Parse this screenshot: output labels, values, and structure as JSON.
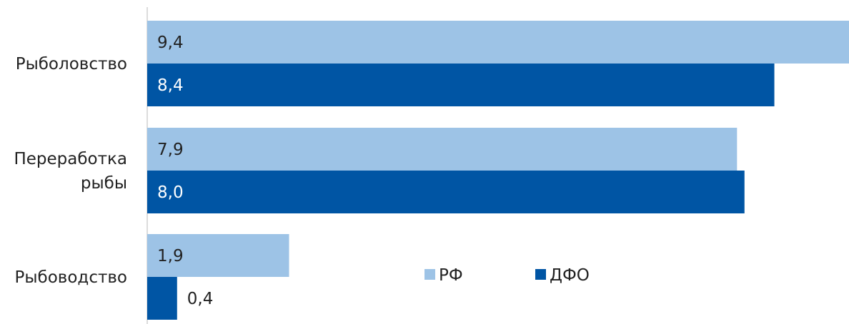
{
  "chart_data": {
    "type": "bar",
    "orientation": "horizontal",
    "categories": [
      [
        "Рыболовство"
      ],
      [
        "Переработка",
        "рыбы"
      ],
      [
        "Рыбоводство"
      ]
    ],
    "series": [
      {
        "name": "РФ",
        "values": [
          9.4,
          7.9,
          1.9
        ],
        "labels": [
          "9,4",
          "7,9",
          "1,9"
        ],
        "color": "#9dc3e6"
      },
      {
        "name": "ДФО",
        "values": [
          8.4,
          8.0,
          0.4
        ],
        "labels": [
          "8,4",
          "8,0",
          "0,4"
        ],
        "color": "#0055a4"
      }
    ],
    "xlim": [
      0,
      9.4
    ],
    "legend_placement": "inside-lower-middle",
    "grid": false
  }
}
